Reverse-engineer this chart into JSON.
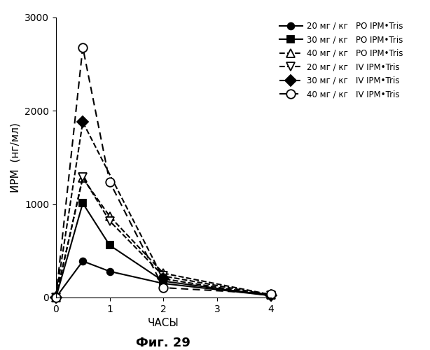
{
  "title": "Фиг. 29",
  "xlabel": "ЧАСЫ",
  "ylabel": "ИРМ  (нг/мл)",
  "xlim": [
    0,
    4
  ],
  "ylim": [
    0,
    3000
  ],
  "yticks": [
    0,
    1000,
    2000,
    3000
  ],
  "xticks": [
    0,
    1,
    2,
    3,
    4
  ],
  "series": [
    {
      "label_dose": "20",
      "label_unit": "мг / кг",
      "label_route": "PO IPM•Tris",
      "x": [
        0,
        0.5,
        1,
        2,
        4
      ],
      "y": [
        0,
        390,
        280,
        150,
        20
      ],
      "linestyle": "solid",
      "marker": "o",
      "markerfacecolor": "black",
      "markeredgecolor": "black",
      "color": "black",
      "markersize": 7,
      "linewidth": 1.5
    },
    {
      "label_dose": "30",
      "label_unit": "мг / кг",
      "label_route": "PO IPM•Tris",
      "x": [
        0,
        0.5,
        1,
        2,
        4
      ],
      "y": [
        0,
        1010,
        560,
        175,
        20
      ],
      "linestyle": "solid",
      "marker": "s",
      "markerfacecolor": "black",
      "markeredgecolor": "black",
      "color": "black",
      "markersize": 7,
      "linewidth": 1.5
    },
    {
      "label_dose": "40",
      "label_unit": "мг / кг",
      "label_route": "PO IPM•Tris",
      "x": [
        0,
        0.5,
        1,
        2,
        4
      ],
      "y": [
        0,
        1280,
        870,
        260,
        30
      ],
      "linestyle": "dashed",
      "marker": "^",
      "markerfacecolor": "white",
      "markeredgecolor": "black",
      "color": "black",
      "markersize": 8,
      "linewidth": 1.5
    },
    {
      "label_dose": "20",
      "label_unit": "мг / кг",
      "label_route": "IV IPM•Tris",
      "x": [
        0,
        0.5,
        1,
        2,
        4
      ],
      "y": [
        0,
        1290,
        820,
        230,
        25
      ],
      "linestyle": "dashed",
      "marker": "v",
      "markerfacecolor": "white",
      "markeredgecolor": "black",
      "color": "black",
      "markersize": 8,
      "linewidth": 1.5
    },
    {
      "label_dose": "30",
      "label_unit": "мг / кг",
      "label_route": "IV IPM•Tris",
      "x": [
        0,
        0.5,
        2,
        4
      ],
      "y": [
        0,
        1880,
        200,
        20
      ],
      "linestyle": "dashed",
      "marker": "D",
      "markerfacecolor": "black",
      "markeredgecolor": "black",
      "color": "black",
      "markersize": 8,
      "linewidth": 1.5
    },
    {
      "label_dose": "40",
      "label_unit": "мг / кг",
      "label_route": "IV IPM•Tris",
      "x": [
        0,
        0.5,
        1,
        2,
        4
      ],
      "y": [
        0,
        2680,
        1240,
        105,
        40
      ],
      "linestyle": "dashed",
      "marker": "o",
      "markerfacecolor": "white",
      "markeredgecolor": "black",
      "color": "black",
      "markersize": 9,
      "linewidth": 1.5,
      "dashes": [
        5,
        3,
        5,
        3
      ]
    }
  ]
}
